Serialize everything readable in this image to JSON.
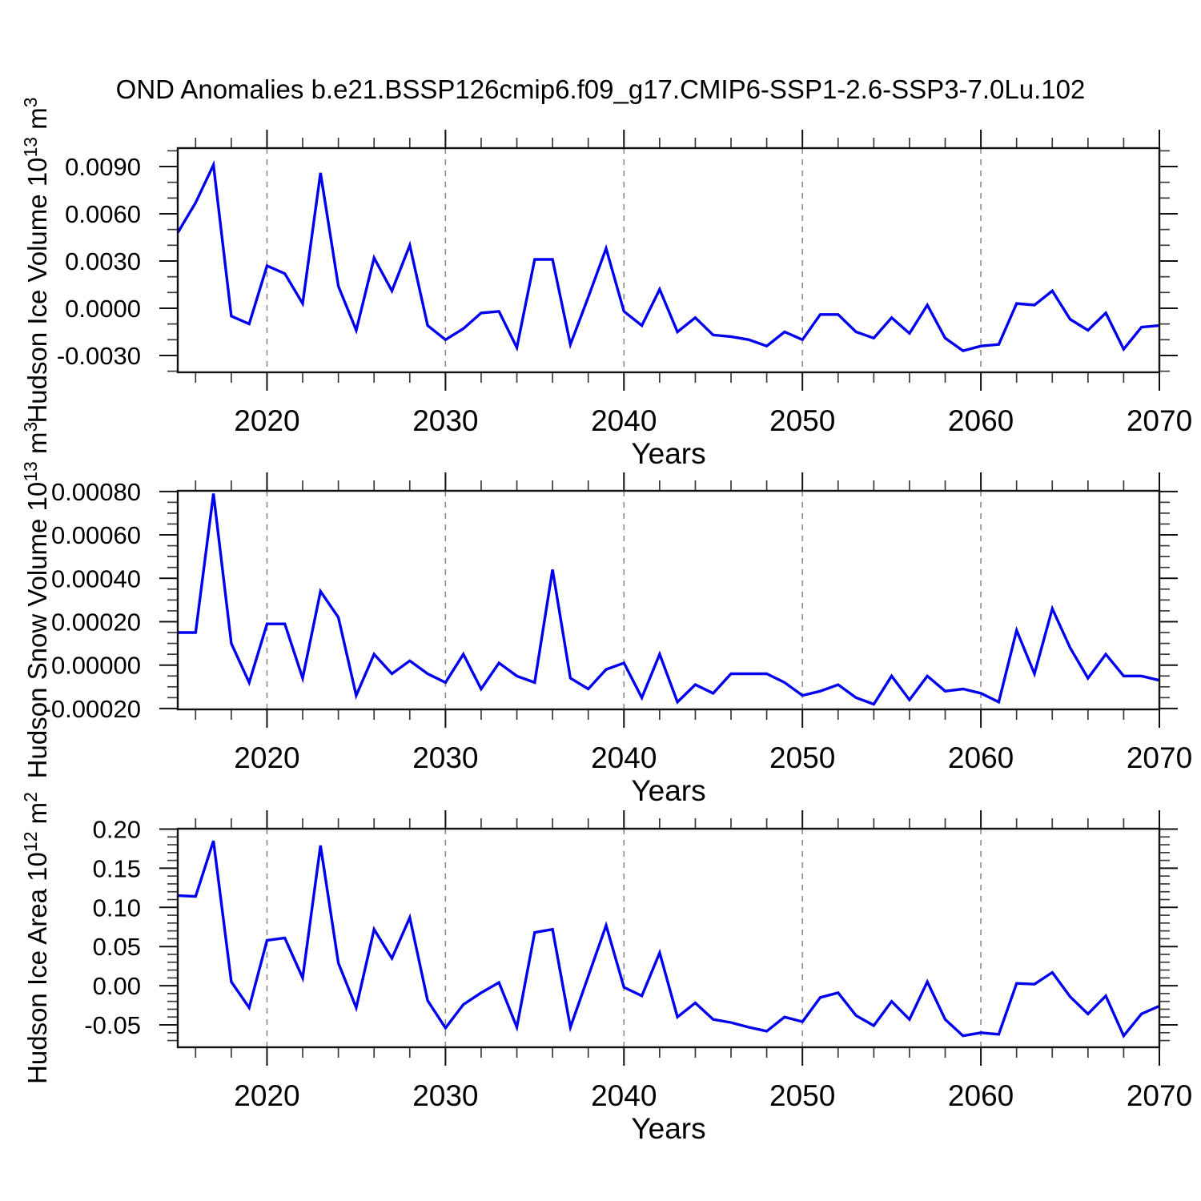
{
  "title": "OND Anomalies b.e21.BSSP126cmip6.f09_g17.CMIP6-SSP1-2.6-SSP3-7.0Lu.102",
  "figure": {
    "background": "#ffffff",
    "line_color": "#0000ee",
    "gridline_color": "#858585"
  },
  "x_axis": {
    "label": "Years",
    "range": [
      2015,
      2070
    ],
    "major_ticks": [
      2020,
      2030,
      2040,
      2050,
      2060,
      2070
    ],
    "tick_labels": [
      "2020",
      "2030",
      "2040",
      "2050",
      "2060",
      "2070"
    ],
    "minor_tick_step": 2,
    "gridline_years": [
      2020,
      2030,
      2040,
      2050,
      2060
    ],
    "years": [
      2015,
      2016,
      2017,
      2018,
      2019,
      2020,
      2021,
      2022,
      2023,
      2024,
      2025,
      2026,
      2027,
      2028,
      2029,
      2030,
      2031,
      2032,
      2033,
      2034,
      2035,
      2036,
      2037,
      2038,
      2039,
      2040,
      2041,
      2042,
      2043,
      2044,
      2045,
      2046,
      2047,
      2048,
      2049,
      2050,
      2051,
      2052,
      2053,
      2054,
      2055,
      2056,
      2057,
      2058,
      2059,
      2060,
      2061,
      2062,
      2063,
      2064,
      2065,
      2066,
      2067,
      2068,
      2069,
      2070
    ]
  },
  "chart_data": [
    {
      "type": "line",
      "name": "hudson-ice-volume",
      "ylabel_text": "Hudson Ice Volume 10^13 m^3",
      "ylabel_prefix": "Hudson Ice Volume 10",
      "ylabel_exponent": "13",
      "ylabel_unit": "m",
      "ylabel_unit_exponent": "3",
      "xlabel": "Years",
      "ylim": [
        -0.00407,
        0.01017
      ],
      "ytick_values": [
        0.009,
        0.006,
        0.003,
        0.0,
        -0.003
      ],
      "ytick_labels": [
        "0.0090",
        "0.0060",
        "0.0030",
        "0.0000",
        "-0.0030"
      ],
      "yminor_step": 0.001,
      "values": [
        0.0048,
        0.0067,
        0.0091,
        -0.0005,
        -0.001,
        0.0027,
        0.0022,
        0.0003,
        0.0086,
        0.0014,
        -0.0014,
        0.0032,
        0.0011,
        0.004,
        -0.0011,
        -0.002,
        -0.0013,
        -0.0003,
        -0.0002,
        -0.0025,
        0.0031,
        0.0031,
        -0.0023,
        0.0007,
        0.0038,
        -0.0002,
        -0.0011,
        0.0012,
        -0.0015,
        -0.0006,
        -0.0017,
        -0.0018,
        -0.002,
        -0.0024,
        -0.0015,
        -0.002,
        -0.0004,
        -0.0004,
        -0.0015,
        -0.0019,
        -0.0006,
        -0.0016,
        0.0002,
        -0.0019,
        -0.0027,
        -0.0024,
        -0.0023,
        0.0003,
        0.0002,
        0.0011,
        -0.0007,
        -0.0014,
        -0.0003,
        -0.0026,
        -0.0012,
        -0.0011
      ]
    },
    {
      "type": "line",
      "name": "hudson-snow-volume",
      "ylabel_text": "Hudson Snow Volume 10^13 m^3",
      "ylabel_prefix": "Hudson Snow Volume 10",
      "ylabel_exponent": "13",
      "ylabel_unit": "m",
      "ylabel_unit_exponent": "3",
      "xlabel": "Years",
      "ylim": [
        -0.000204,
        0.000803
      ],
      "ytick_values": [
        0.0008,
        0.0006,
        0.0004,
        0.0002,
        0.0,
        -0.0002
      ],
      "ytick_labels": [
        "0.00080",
        "0.00060",
        "0.00040",
        "0.00020",
        "0.00000",
        "-0.00020"
      ],
      "yminor_step": 5e-05,
      "values": [
        0.00015,
        0.00015,
        0.00079,
        0.0001,
        -8e-05,
        0.00019,
        0.00019,
        -6e-05,
        0.00034,
        0.00022,
        -0.00014,
        5e-05,
        -4e-05,
        2e-05,
        -4e-05,
        -8e-05,
        5e-05,
        -0.00011,
        1e-05,
        -5e-05,
        -8e-05,
        0.00044,
        -6e-05,
        -0.00011,
        -2e-05,
        1e-05,
        -0.00015,
        5e-05,
        -0.00017,
        -9e-05,
        -0.00013,
        -4e-05,
        -4e-05,
        -4e-05,
        -8e-05,
        -0.00014,
        -0.00012,
        -9e-05,
        -0.00015,
        -0.00018,
        -5e-05,
        -0.00016,
        -5e-05,
        -0.00012,
        -0.00011,
        -0.00013,
        -0.00017,
        0.00016,
        -4e-05,
        0.00026,
        8e-05,
        -6e-05,
        5e-05,
        -5e-05,
        -5e-05,
        -7e-05
      ]
    },
    {
      "type": "line",
      "name": "hudson-ice-area",
      "ylabel_text": "Hudson Ice Area 10^12 m^2",
      "ylabel_prefix": "Hudson Ice Area 10",
      "ylabel_exponent": "12",
      "ylabel_unit": "m",
      "ylabel_unit_exponent": "2",
      "xlabel": "Years",
      "ylim": [
        -0.0786,
        0.2005
      ],
      "ytick_values": [
        0.2,
        0.15,
        0.1,
        0.05,
        0.0,
        -0.05
      ],
      "ytick_labels": [
        "0.20",
        "0.15",
        "0.10",
        "0.05",
        "0.00",
        "-0.05"
      ],
      "yminor_step": 0.01,
      "values": [
        0.115,
        0.114,
        0.185,
        0.005,
        -0.028,
        0.058,
        0.061,
        0.01,
        0.179,
        0.029,
        -0.028,
        0.072,
        0.035,
        0.087,
        -0.019,
        -0.054,
        -0.024,
        -0.009,
        0.004,
        -0.053,
        0.068,
        0.072,
        -0.053,
        0.012,
        0.077,
        -0.002,
        -0.013,
        0.042,
        -0.04,
        -0.022,
        -0.043,
        -0.047,
        -0.053,
        -0.058,
        -0.04,
        -0.046,
        -0.015,
        -0.009,
        -0.038,
        -0.051,
        -0.02,
        -0.043,
        0.005,
        -0.043,
        -0.064,
        -0.06,
        -0.062,
        0.003,
        0.002,
        0.017,
        -0.014,
        -0.036,
        -0.013,
        -0.064,
        -0.036,
        -0.026
      ]
    }
  ]
}
